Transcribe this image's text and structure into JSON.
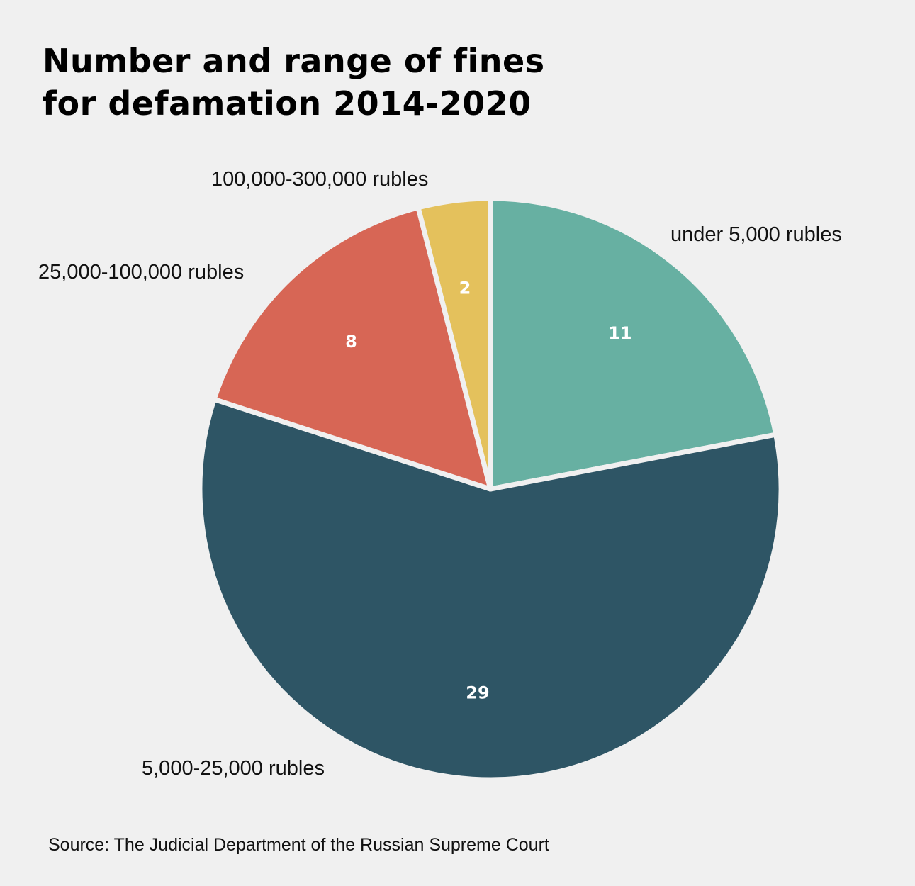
{
  "chart_data": {
    "type": "pie",
    "title": "Number and range of fines for defamation 2014-2020",
    "title_lines": [
      "Number and range of fines",
      "for defamation 2014-2020"
    ],
    "source": "Source: The Judicial Department of the Russian Supreme Court",
    "start_angle": "12 o'clock, clockwise",
    "slices": [
      {
        "label": "under 5,000 rubles",
        "value": 11,
        "color": "#67b0a2"
      },
      {
        "label": "5,000-25,000 rubles",
        "value": 29,
        "color": "#2e5565"
      },
      {
        "label": "25,000-100,000 rubles",
        "value": 8,
        "color": "#d76655"
      },
      {
        "label": "100,000-300,000 rubles",
        "value": 2,
        "color": "#e4c15c"
      }
    ],
    "background": "#f0f0f0"
  }
}
